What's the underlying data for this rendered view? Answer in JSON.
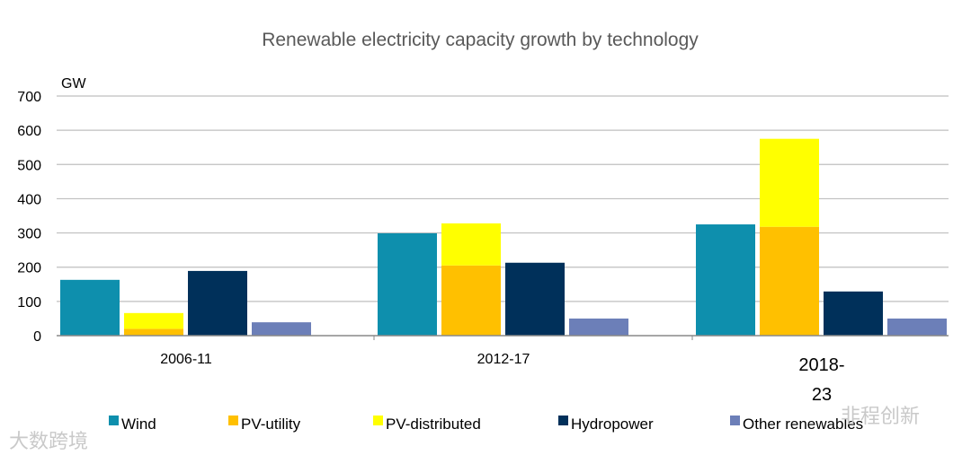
{
  "chart_data": {
    "type": "bar",
    "stacked_series": [
      "PV-utility",
      "PV-distributed"
    ],
    "title": "Renewable electricity capacity growth by technology",
    "ylabel": "GW",
    "xlabel": "",
    "ylim": [
      0,
      700
    ],
    "yticks": [
      0,
      100,
      200,
      300,
      400,
      500,
      600,
      700
    ],
    "grid": true,
    "legend_position": "bottom",
    "categories": [
      "2006-11",
      "2012-17",
      "2018-23"
    ],
    "category_label_lines": [
      [
        "2006-11"
      ],
      [
        "2012-17"
      ],
      [
        "2018-",
        "23"
      ]
    ],
    "series": [
      {
        "name": "Wind",
        "color": "#0e8fad",
        "values": [
          163,
          299,
          325
        ]
      },
      {
        "name": "PV-utility",
        "color": "#ffc000",
        "values": [
          20,
          205,
          318
        ]
      },
      {
        "name": "PV-distributed",
        "color": "#ffff00",
        "values": [
          46,
          123,
          257
        ]
      },
      {
        "name": "Hydropower",
        "color": "#00305a",
        "values": [
          189,
          213,
          129
        ]
      },
      {
        "name": "Other renewables",
        "color": "#6c7fb8",
        "values": [
          39,
          50,
          50
        ]
      }
    ]
  },
  "watermarks": {
    "left": "大数跨境",
    "right": "非程创新"
  }
}
